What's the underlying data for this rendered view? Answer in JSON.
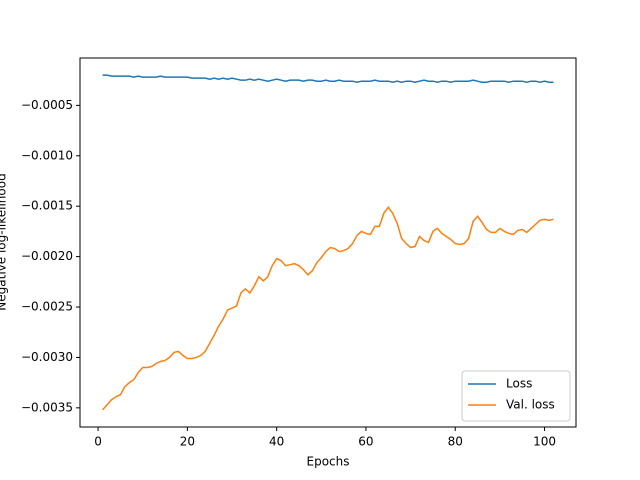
{
  "chart_data": {
    "type": "line",
    "xlabel": "Epochs",
    "ylabel": "Negative log-likelihood",
    "x": [
      1,
      2,
      3,
      4,
      5,
      6,
      7,
      8,
      9,
      10,
      11,
      12,
      13,
      14,
      15,
      16,
      17,
      18,
      19,
      20,
      21,
      22,
      23,
      24,
      25,
      26,
      27,
      28,
      29,
      30,
      31,
      32,
      33,
      34,
      35,
      36,
      37,
      38,
      39,
      40,
      41,
      42,
      43,
      44,
      45,
      46,
      47,
      48,
      49,
      50,
      51,
      52,
      53,
      54,
      55,
      56,
      57,
      58,
      59,
      60,
      61,
      62,
      63,
      64,
      65,
      66,
      67,
      68,
      69,
      70,
      71,
      72,
      73,
      74,
      75,
      76,
      77,
      78,
      79,
      80,
      81,
      82,
      83,
      84,
      85,
      86,
      87,
      88,
      89,
      90,
      91,
      92,
      93,
      94,
      95,
      96,
      97,
      98,
      99,
      100,
      101,
      102
    ],
    "series": [
      {
        "name": "Loss",
        "color": "#1f77b4",
        "values": [
          -0.0002,
          -0.0002,
          -0.00021,
          -0.00021,
          -0.00021,
          -0.00021,
          -0.00021,
          -0.00022,
          -0.00021,
          -0.00022,
          -0.00022,
          -0.00022,
          -0.00022,
          -0.00021,
          -0.00022,
          -0.00022,
          -0.00022,
          -0.00022,
          -0.00022,
          -0.00022,
          -0.00023,
          -0.00023,
          -0.00023,
          -0.00023,
          -0.00024,
          -0.00023,
          -0.00024,
          -0.00023,
          -0.00024,
          -0.00023,
          -0.00024,
          -0.00025,
          -0.00025,
          -0.00024,
          -0.00025,
          -0.00024,
          -0.00025,
          -0.00026,
          -0.00025,
          -0.00024,
          -0.00025,
          -0.00026,
          -0.00025,
          -0.00025,
          -0.00025,
          -0.00026,
          -0.00025,
          -0.00025,
          -0.00026,
          -0.00026,
          -0.00025,
          -0.00026,
          -0.00026,
          -0.00025,
          -0.00026,
          -0.00026,
          -0.00026,
          -0.00027,
          -0.00026,
          -0.00026,
          -0.00026,
          -0.00025,
          -0.00026,
          -0.00026,
          -0.00026,
          -0.00027,
          -0.00026,
          -0.00027,
          -0.00026,
          -0.00026,
          -0.00027,
          -0.00026,
          -0.00025,
          -0.00026,
          -0.00026,
          -0.00027,
          -0.00026,
          -0.00026,
          -0.00027,
          -0.00026,
          -0.00026,
          -0.00026,
          -0.00026,
          -0.00025,
          -0.00026,
          -0.00027,
          -0.00027,
          -0.00026,
          -0.00026,
          -0.00026,
          -0.00026,
          -0.00027,
          -0.00026,
          -0.00026,
          -0.00026,
          -0.00027,
          -0.00026,
          -0.00026,
          -0.00027,
          -0.00026,
          -0.00027,
          -0.00027
        ]
      },
      {
        "name": "Val. loss",
        "color": "#ff7f0e",
        "values": [
          -0.00352,
          -0.00347,
          -0.00342,
          -0.00339,
          -0.00337,
          -0.00329,
          -0.00325,
          -0.00322,
          -0.00315,
          -0.0031,
          -0.0031,
          -0.00309,
          -0.00306,
          -0.00304,
          -0.00303,
          -0.003,
          -0.00295,
          -0.00294,
          -0.00298,
          -0.00301,
          -0.00301,
          -0.003,
          -0.00298,
          -0.00294,
          -0.00286,
          -0.00278,
          -0.00269,
          -0.00262,
          -0.00253,
          -0.00251,
          -0.00249,
          -0.00236,
          -0.00232,
          -0.00236,
          -0.00229,
          -0.0022,
          -0.00224,
          -0.0022,
          -0.00209,
          -0.00202,
          -0.00204,
          -0.00209,
          -0.00208,
          -0.00207,
          -0.00209,
          -0.00213,
          -0.00218,
          -0.00214,
          -0.00206,
          -0.00201,
          -0.00195,
          -0.00191,
          -0.00192,
          -0.00195,
          -0.00194,
          -0.00192,
          -0.00187,
          -0.00179,
          -0.00175,
          -0.00177,
          -0.00178,
          -0.0017,
          -0.0017,
          -0.00157,
          -0.00151,
          -0.00157,
          -0.00167,
          -0.00182,
          -0.00187,
          -0.00191,
          -0.0019,
          -0.0018,
          -0.00184,
          -0.00186,
          -0.00175,
          -0.00172,
          -0.00177,
          -0.0018,
          -0.00183,
          -0.00187,
          -0.00188,
          -0.00187,
          -0.00182,
          -0.00165,
          -0.0016,
          -0.00166,
          -0.00173,
          -0.00176,
          -0.00176,
          -0.00172,
          -0.00175,
          -0.00177,
          -0.00178,
          -0.00174,
          -0.00173,
          -0.00176,
          -0.00172,
          -0.00168,
          -0.00164,
          -0.00163,
          -0.00164,
          -0.00163
        ]
      }
    ],
    "xlim": [
      -4.05,
      107.05
    ],
    "xticks": [
      0,
      20,
      40,
      60,
      80,
      100
    ],
    "ylim": [
      -0.00369,
      -3e-05
    ],
    "yticks": [
      {
        "value": -0.0035,
        "label": "−0.0035"
      },
      {
        "value": -0.003,
        "label": "−0.0030"
      },
      {
        "value": -0.0025,
        "label": "−0.0025"
      },
      {
        "value": -0.002,
        "label": "−0.0020"
      },
      {
        "value": -0.0015,
        "label": "−0.0015"
      },
      {
        "value": -0.001,
        "label": "−0.0010"
      },
      {
        "value": -0.0005,
        "label": "−0.0005"
      }
    ],
    "legend": "lower right"
  }
}
